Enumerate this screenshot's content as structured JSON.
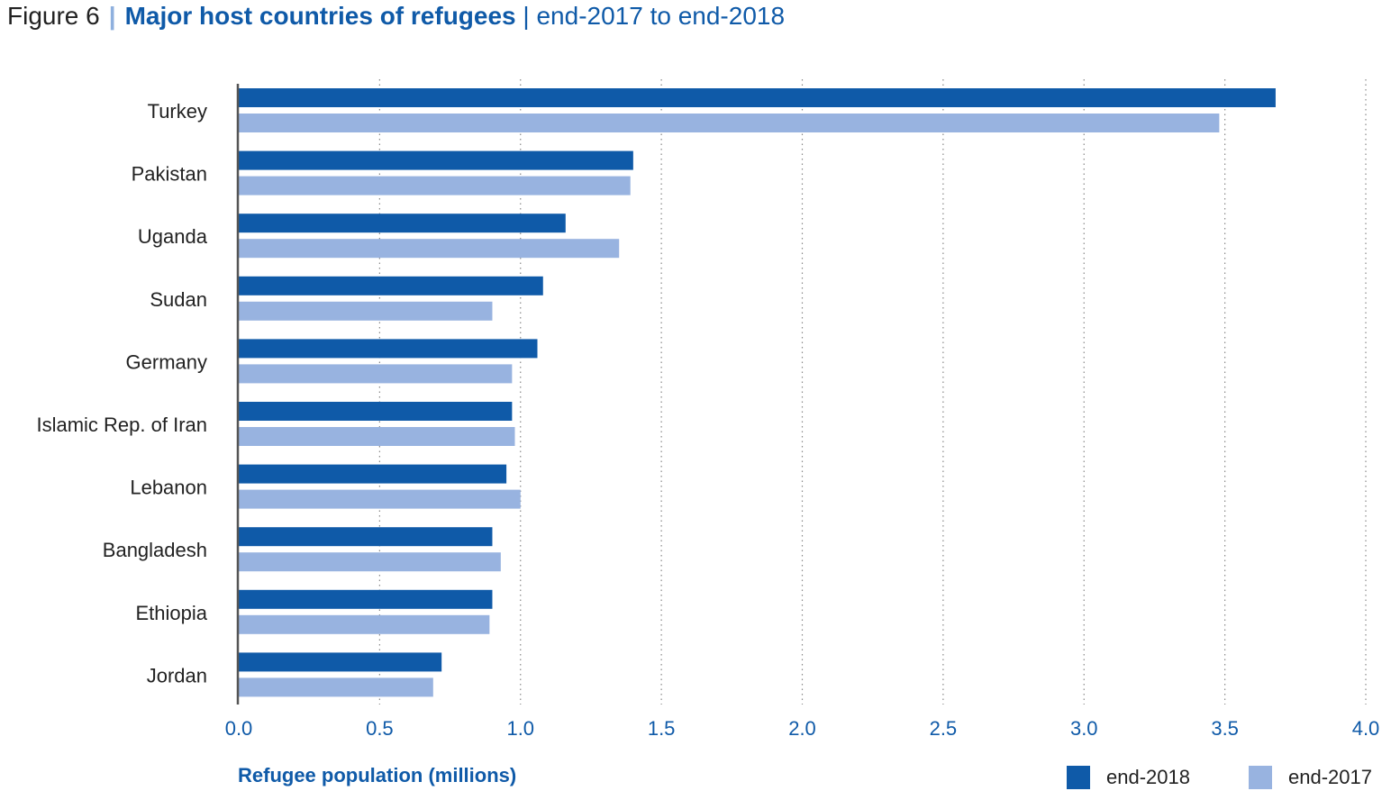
{
  "header": {
    "figure_label": "Figure 6",
    "separator": "|",
    "title": "Major host countries of refugees",
    "subtitle": "| end-2017 to end-2018"
  },
  "colors": {
    "end_2018": "#0f5aa8",
    "end_2017": "#98b3e0",
    "axis_text": "#0f5aa8",
    "grid": "#888888"
  },
  "chart_data": {
    "type": "bar",
    "orientation": "horizontal",
    "title": "Major host countries of refugees",
    "subtitle": "end-2017 to end-2018",
    "xlabel": "Refugee population (millions)",
    "ylabel": "",
    "xlim": [
      0,
      4.0
    ],
    "xticks": [
      "0.0",
      "0.5",
      "1.0",
      "1.5",
      "2.0",
      "2.5",
      "3.0",
      "3.5",
      "4.0"
    ],
    "grid": "vertical dotted",
    "legend_position": "bottom-right",
    "categories": [
      "Turkey",
      "Pakistan",
      "Uganda",
      "Sudan",
      "Germany",
      "Islamic Rep. of Iran",
      "Lebanon",
      "Bangladesh",
      "Ethiopia",
      "Jordan"
    ],
    "series": [
      {
        "name": "end-2018",
        "color": "#0f5aa8",
        "values": [
          3.68,
          1.4,
          1.16,
          1.08,
          1.06,
          0.97,
          0.95,
          0.9,
          0.9,
          0.72
        ]
      },
      {
        "name": "end-2017",
        "color": "#98b3e0",
        "values": [
          3.48,
          1.39,
          1.35,
          0.9,
          0.97,
          0.98,
          1.0,
          0.93,
          0.89,
          0.69
        ]
      }
    ]
  }
}
